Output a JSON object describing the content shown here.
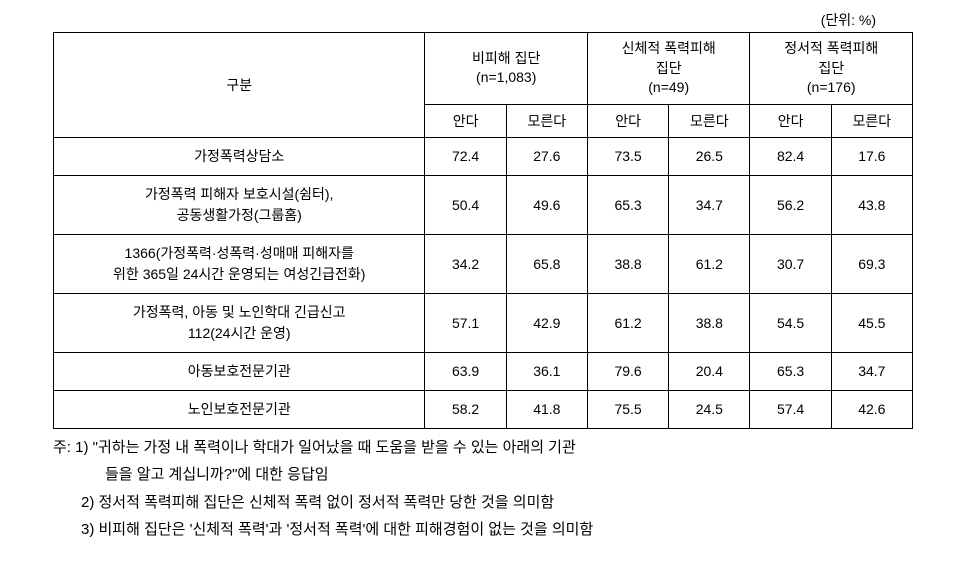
{
  "unit_label": "(단위: %)",
  "table": {
    "category_header": "구분",
    "groups": [
      {
        "title": "비피해 집단",
        "subtitle": "(n=1,083)"
      },
      {
        "title": "신체적 폭력피해\n집단",
        "subtitle": "(n=49)"
      },
      {
        "title": "정서적 폭력피해\n집단",
        "subtitle": "(n=176)"
      }
    ],
    "subheaders": [
      "안다",
      "모른다",
      "안다",
      "모른다",
      "안다",
      "모른다"
    ],
    "rows": [
      {
        "label": "가정폭력상담소",
        "values": [
          "72.4",
          "27.6",
          "73.5",
          "26.5",
          "82.4",
          "17.6"
        ]
      },
      {
        "label": "가정폭력 피해자 보호시설(쉼터),\n공동생활가정(그룹홈)",
        "values": [
          "50.4",
          "49.6",
          "65.3",
          "34.7",
          "56.2",
          "43.8"
        ]
      },
      {
        "label": "1366(가정폭력·성폭력·성매매 피해자를\n위한 365일 24시간 운영되는 여성긴급전화)",
        "values": [
          "34.2",
          "65.8",
          "38.8",
          "61.2",
          "30.7",
          "69.3"
        ]
      },
      {
        "label": "가정폭력, 아동 및 노인학대 긴급신고\n112(24시간 운영)",
        "values": [
          "57.1",
          "42.9",
          "61.2",
          "38.8",
          "54.5",
          "45.5"
        ]
      },
      {
        "label": "아동보호전문기관",
        "values": [
          "63.9",
          "36.1",
          "79.6",
          "20.4",
          "65.3",
          "34.7"
        ]
      },
      {
        "label": "노인보호전문기관",
        "values": [
          "58.2",
          "41.8",
          "75.5",
          "24.5",
          "57.4",
          "42.6"
        ]
      }
    ]
  },
  "footnotes": {
    "note1_part1": "주: 1) \"귀하는 가정 내 폭력이나 학대가 일어났을 때 도움을 받을 수 있는 아래의 기관",
    "note1_part2": "들을 알고 계십니까?\"에 대한 응답임",
    "note2": "2) 정서적 폭력피해 집단은 신체적 폭력 없이 정서적 폭력만 당한 것을 의미함",
    "note3": "3) 비피해 집단은 '신체적 폭력'과 '정서적 폭력'에 대한 피해경험이 없는 것을 의미함"
  }
}
